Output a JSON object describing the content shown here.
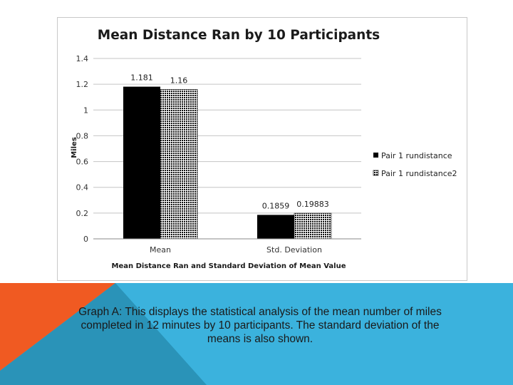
{
  "slide": {
    "caption": "Graph A: This displays the statistical analysis of the mean number of miles completed in 12 minutes by 10 participants. The standard deviation of the means is also shown.",
    "colors": {
      "bg": "#ffffff",
      "bottom_band": "#3bb2dd",
      "accent_orange": "#f05a22",
      "accent_teal": "#2a93b8"
    }
  },
  "chart_data": {
    "type": "bar",
    "title": "Mean Distance Ran by 10 Participants",
    "xlabel": "Mean Distance Ran and Standard  Deviation of Mean Value",
    "ylabel": "Miles",
    "categories": [
      "Mean",
      "Std. Deviation"
    ],
    "series": [
      {
        "name": "Pair 1 rundistance",
        "values": [
          1.181,
          0.1859
        ],
        "labels": [
          "1.181",
          "0.1859"
        ],
        "fill": "solid-black"
      },
      {
        "name": "Pair 1 rundistance2",
        "values": [
          1.16,
          0.19883
        ],
        "labels": [
          "1.16",
          "0.19883"
        ],
        "fill": "black-white-dot-pattern"
      }
    ],
    "ylim": [
      0,
      1.4
    ],
    "yticks": [
      "0",
      "0.2",
      "0.4",
      "0.6",
      "0.8",
      "1",
      "1.2",
      "1.4"
    ],
    "grid": true,
    "legend": "right"
  }
}
